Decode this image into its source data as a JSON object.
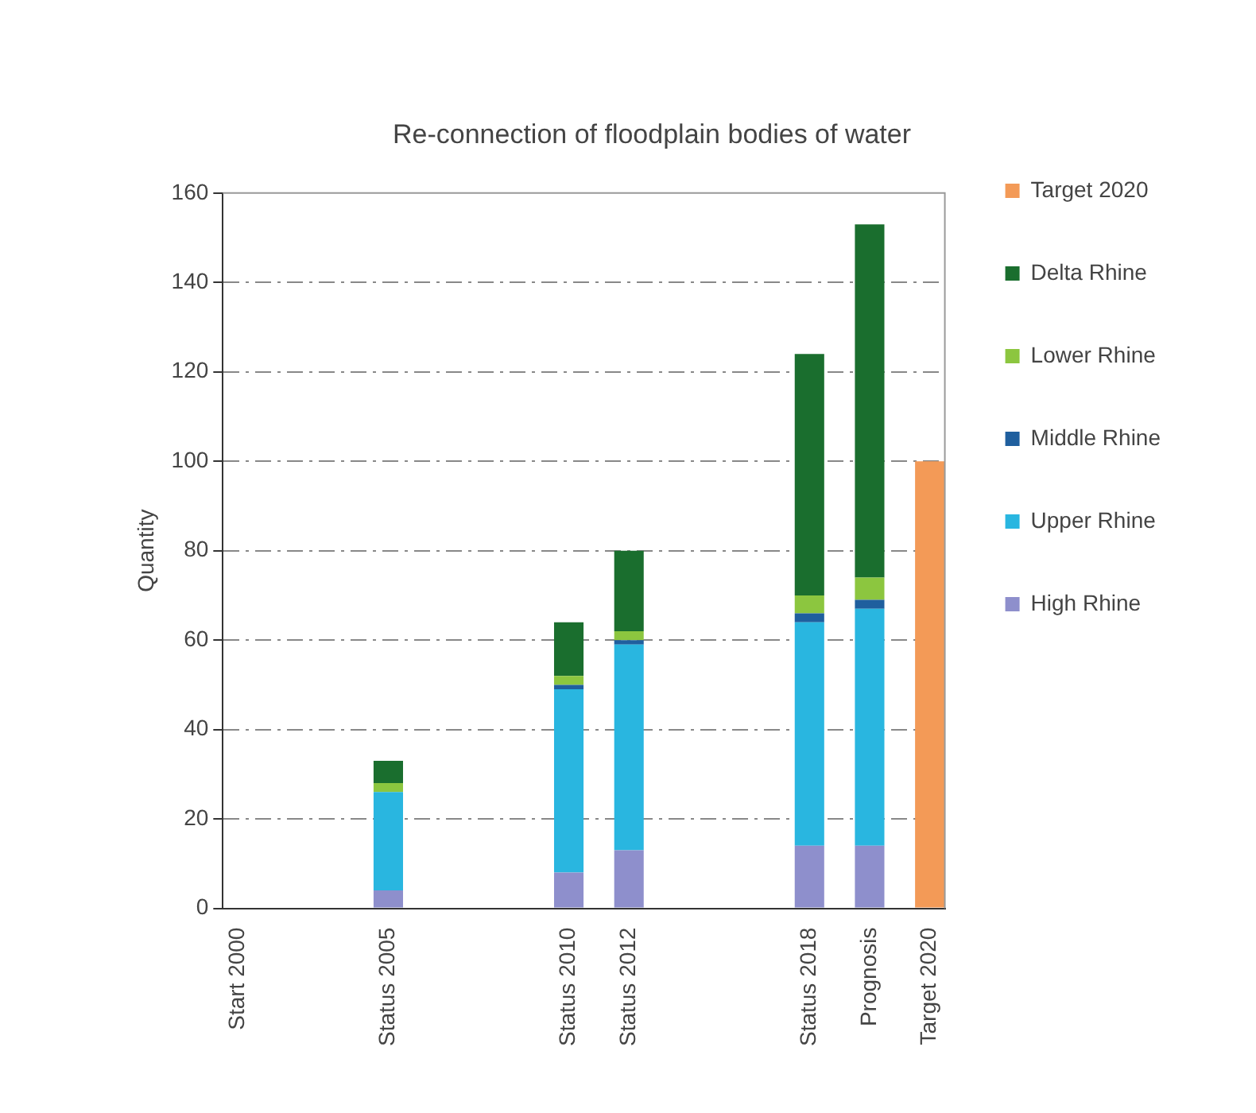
{
  "chart_data": {
    "type": "bar",
    "title": "Re-connection of floodplain bodies of water",
    "ylabel": "Quantity",
    "stacked": true,
    "grid": "y",
    "legend": "right",
    "ylim": [
      0,
      160
    ],
    "yticks": [
      0,
      20,
      40,
      60,
      80,
      100,
      120,
      140,
      160
    ],
    "categories": [
      "Start 2000",
      null,
      null,
      null,
      null,
      "Status 2005",
      null,
      null,
      null,
      null,
      null,
      "Status 2010",
      null,
      "Status 2012",
      null,
      null,
      null,
      null,
      null,
      "Status 2018",
      null,
      "Prognosis",
      null,
      "Target 2020"
    ],
    "series": [
      {
        "name": "High Rhine",
        "color": "#8e8fcc",
        "values": [
          null,
          null,
          null,
          null,
          null,
          4,
          null,
          null,
          null,
          null,
          null,
          8,
          null,
          13,
          null,
          null,
          null,
          null,
          null,
          14,
          null,
          14,
          null,
          null
        ]
      },
      {
        "name": "Upper Rhine",
        "color": "#29b6e0",
        "values": [
          null,
          null,
          null,
          null,
          null,
          22,
          null,
          null,
          null,
          null,
          null,
          41,
          null,
          46,
          null,
          null,
          null,
          null,
          null,
          50,
          null,
          53,
          null,
          null
        ]
      },
      {
        "name": "Middle Rhine",
        "color": "#1f5f9e",
        "values": [
          null,
          null,
          null,
          null,
          null,
          null,
          null,
          null,
          null,
          null,
          null,
          1,
          null,
          1,
          null,
          null,
          null,
          null,
          null,
          2,
          null,
          2,
          null,
          null
        ]
      },
      {
        "name": "Lower Rhine",
        "color": "#8cc63f",
        "values": [
          null,
          null,
          null,
          null,
          null,
          2,
          null,
          null,
          null,
          null,
          null,
          2,
          null,
          2,
          null,
          null,
          null,
          null,
          null,
          4,
          null,
          5,
          null,
          null
        ]
      },
      {
        "name": "Delta Rhine",
        "color": "#1a6e2e",
        "values": [
          null,
          null,
          null,
          null,
          null,
          5,
          null,
          null,
          null,
          null,
          null,
          12,
          null,
          18,
          null,
          null,
          null,
          null,
          null,
          54,
          null,
          79,
          null,
          null
        ]
      },
      {
        "name": "Target 2020",
        "color": "#f39a57",
        "values": [
          null,
          null,
          null,
          null,
          null,
          null,
          null,
          null,
          null,
          null,
          null,
          null,
          null,
          null,
          null,
          null,
          null,
          null,
          null,
          null,
          null,
          null,
          null,
          100
        ]
      }
    ]
  }
}
